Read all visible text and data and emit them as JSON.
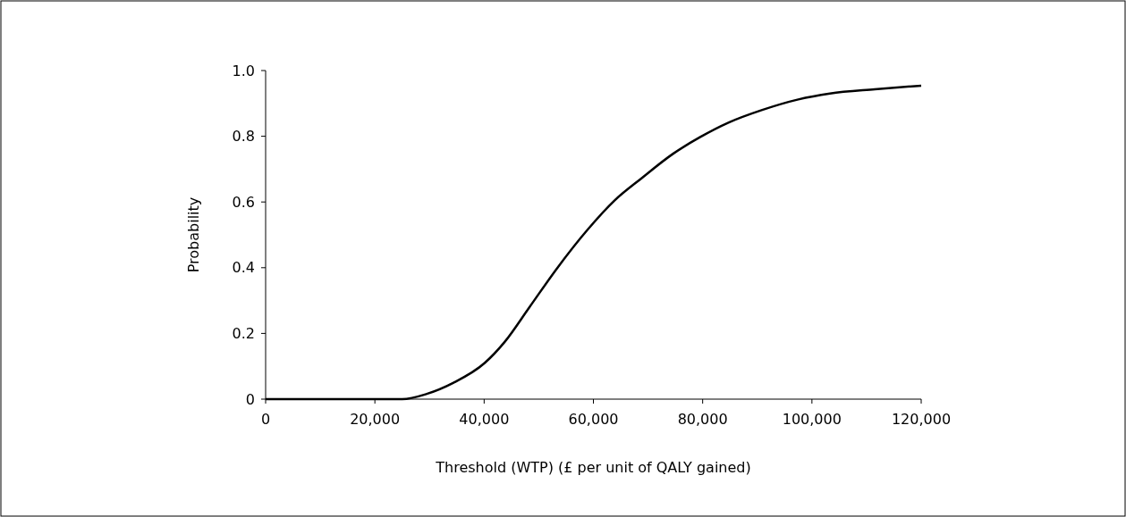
{
  "chart_data": {
    "type": "line",
    "xlabel": "Threshold (WTP) (£ per unit of QALY gained)",
    "ylabel": "Probability",
    "x": [
      0,
      5000,
      15000,
      25000,
      29500,
      34400,
      40100,
      43800,
      48300,
      53200,
      59000,
      63900,
      68800,
      74600,
      79500,
      84800,
      90900,
      97500,
      103300,
      111500,
      120000
    ],
    "series": [
      {
        "color": "#000000",
        "values": [
          0,
          0,
          0,
          0,
          0.016,
          0.05,
          0.11,
          0.175,
          0.28,
          0.395,
          0.517,
          0.605,
          0.672,
          0.747,
          0.797,
          0.842,
          0.88,
          0.912,
          0.93,
          0.943,
          0.954
        ]
      }
    ],
    "xlim": [
      0,
      120000
    ],
    "xticks": [
      0,
      {
        "value": 20000,
        "label": "20,000"
      },
      {
        "value": 40000,
        "label": "40,000"
      },
      {
        "value": 60000,
        "label": "60,000"
      },
      {
        "value": 80000,
        "label": "80,000"
      },
      {
        "value": 100000,
        "label": "100,000"
      },
      {
        "value": 120000,
        "label": "120,000"
      }
    ],
    "ylim": [
      0,
      1
    ],
    "yticks": [
      0,
      0.2,
      0.4,
      0.6,
      0.8,
      {
        "value": 1,
        "label": "1.0"
      }
    ],
    "marker": "none",
    "line_style": "solid"
  }
}
